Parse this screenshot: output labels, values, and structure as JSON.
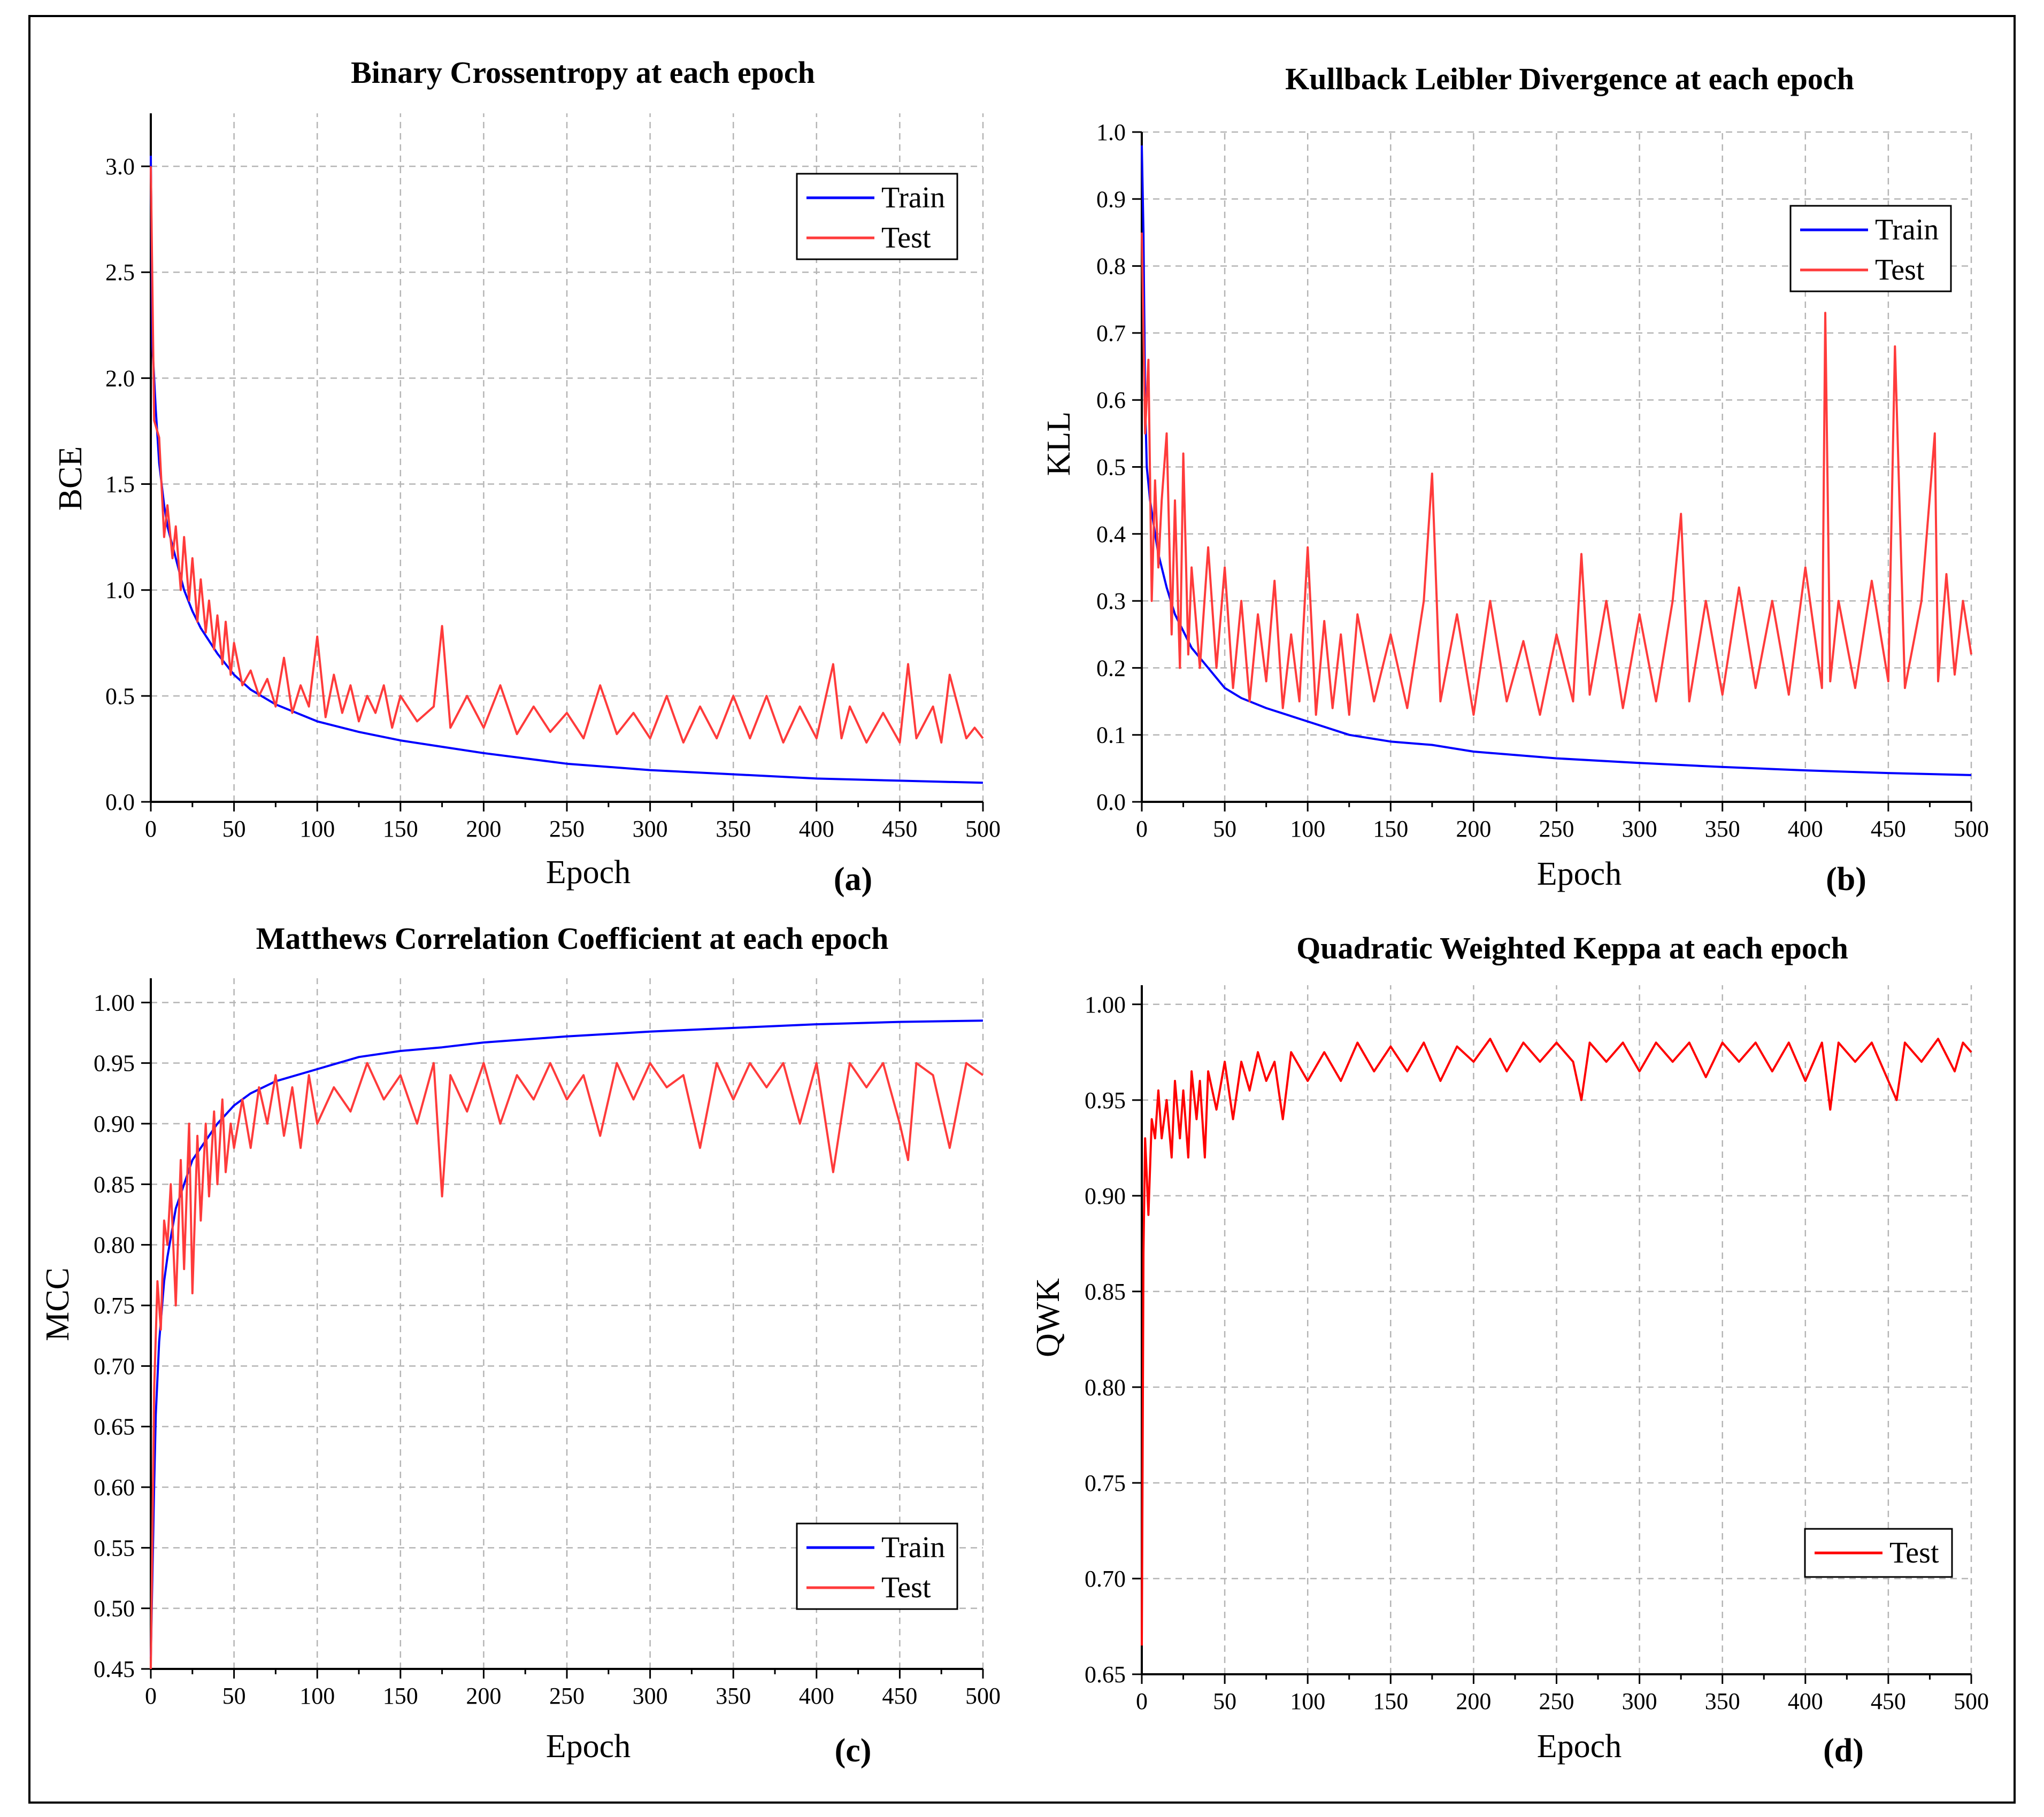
{
  "chart_data": [
    {
      "type": "line",
      "panel_label": "(a)",
      "title": "Binary Crossentropy at each epoch",
      "xlabel": "Epoch",
      "ylabel": "BCE",
      "xlim": [
        0,
        500
      ],
      "ylim": [
        0,
        3.25
      ],
      "xticks": [
        "0",
        "50",
        "100",
        "150",
        "200",
        "250",
        "300",
        "350",
        "400",
        "450",
        "500"
      ],
      "yticks": [
        "0.0",
        "0.5",
        "1.0",
        "1.5",
        "2.0",
        "2.5",
        "3.0"
      ],
      "ytick_values": [
        0,
        0.5,
        1.0,
        1.5,
        2.0,
        2.5,
        3.0
      ],
      "grid": true,
      "legend_position": "top-right",
      "series": [
        {
          "name": "Train",
          "color": "#0000ff",
          "x": [
            0,
            1,
            3,
            5,
            8,
            10,
            15,
            20,
            25,
            30,
            40,
            50,
            60,
            75,
            100,
            125,
            150,
            175,
            200,
            250,
            300,
            350,
            400,
            450,
            500
          ],
          "y": [
            3.05,
            2.15,
            1.85,
            1.6,
            1.4,
            1.3,
            1.15,
            1.0,
            0.9,
            0.82,
            0.7,
            0.6,
            0.53,
            0.46,
            0.38,
            0.33,
            0.29,
            0.26,
            0.23,
            0.18,
            0.15,
            0.13,
            0.11,
            0.1,
            0.09
          ]
        },
        {
          "name": "Test",
          "color": "#ff3b3b",
          "x": [
            0,
            2,
            5,
            8,
            10,
            13,
            15,
            18,
            20,
            23,
            25,
            28,
            30,
            33,
            35,
            38,
            40,
            43,
            45,
            48,
            50,
            55,
            60,
            65,
            70,
            75,
            80,
            85,
            90,
            95,
            100,
            105,
            110,
            115,
            120,
            125,
            130,
            135,
            140,
            145,
            150,
            160,
            170,
            175,
            180,
            190,
            200,
            210,
            220,
            230,
            240,
            250,
            260,
            270,
            280,
            290,
            300,
            310,
            320,
            330,
            340,
            350,
            360,
            370,
            380,
            390,
            400,
            410,
            415,
            420,
            430,
            440,
            450,
            455,
            460,
            470,
            475,
            480,
            490,
            495,
            500
          ],
          "y": [
            3.0,
            1.8,
            1.72,
            1.25,
            1.4,
            1.15,
            1.3,
            1.0,
            1.25,
            0.95,
            1.15,
            0.85,
            1.05,
            0.8,
            0.95,
            0.72,
            0.88,
            0.65,
            0.85,
            0.6,
            0.75,
            0.55,
            0.62,
            0.5,
            0.58,
            0.45,
            0.68,
            0.42,
            0.55,
            0.45,
            0.78,
            0.4,
            0.6,
            0.42,
            0.55,
            0.38,
            0.5,
            0.42,
            0.55,
            0.35,
            0.5,
            0.38,
            0.45,
            0.83,
            0.35,
            0.5,
            0.35,
            0.55,
            0.32,
            0.45,
            0.33,
            0.42,
            0.3,
            0.55,
            0.32,
            0.42,
            0.3,
            0.5,
            0.28,
            0.45,
            0.3,
            0.5,
            0.3,
            0.5,
            0.28,
            0.45,
            0.3,
            0.65,
            0.3,
            0.45,
            0.28,
            0.42,
            0.28,
            0.65,
            0.3,
            0.45,
            0.28,
            0.6,
            0.3,
            0.35,
            0.3
          ]
        }
      ]
    },
    {
      "type": "line",
      "panel_label": "(b)",
      "title": "Kullback Leibler Divergence at each epoch",
      "xlabel": "Epoch",
      "ylabel": "KLL",
      "xlim": [
        0,
        500
      ],
      "ylim": [
        0,
        1.0
      ],
      "xticks": [
        "0",
        "50",
        "100",
        "150",
        "200",
        "250",
        "300",
        "350",
        "400",
        "450",
        "500"
      ],
      "yticks": [
        "0.0",
        "0.1",
        "0.2",
        "0.3",
        "0.4",
        "0.5",
        "0.6",
        "0.7",
        "0.8",
        "0.9",
        "1.0"
      ],
      "ytick_values": [
        0,
        0.1,
        0.2,
        0.3,
        0.4,
        0.5,
        0.6,
        0.7,
        0.8,
        0.9,
        1.0
      ],
      "grid": true,
      "legend_position": "top-right",
      "series": [
        {
          "name": "Train",
          "color": "#0000ff",
          "x": [
            0,
            1,
            2,
            3,
            5,
            8,
            10,
            15,
            20,
            30,
            40,
            50,
            60,
            75,
            100,
            125,
            150,
            175,
            200,
            250,
            300,
            350,
            400,
            450,
            500
          ],
          "y": [
            0.98,
            0.85,
            0.6,
            0.5,
            0.45,
            0.4,
            0.37,
            0.32,
            0.28,
            0.23,
            0.2,
            0.17,
            0.155,
            0.14,
            0.12,
            0.1,
            0.09,
            0.085,
            0.075,
            0.065,
            0.058,
            0.052,
            0.047,
            0.043,
            0.04
          ]
        },
        {
          "name": "Test",
          "color": "#ff3b3b",
          "x": [
            0,
            2,
            4,
            6,
            8,
            10,
            12,
            15,
            18,
            20,
            23,
            25,
            28,
            30,
            35,
            40,
            45,
            50,
            55,
            60,
            65,
            70,
            75,
            80,
            85,
            90,
            95,
            100,
            105,
            110,
            115,
            120,
            125,
            130,
            140,
            150,
            160,
            170,
            175,
            180,
            190,
            200,
            210,
            220,
            230,
            240,
            250,
            260,
            265,
            270,
            280,
            290,
            300,
            310,
            320,
            325,
            330,
            340,
            350,
            360,
            370,
            380,
            390,
            400,
            410,
            412,
            415,
            420,
            430,
            440,
            450,
            454,
            460,
            470,
            478,
            480,
            485,
            490,
            495,
            500
          ],
          "y": [
            0.85,
            0.55,
            0.66,
            0.3,
            0.48,
            0.35,
            0.45,
            0.55,
            0.25,
            0.45,
            0.2,
            0.52,
            0.22,
            0.35,
            0.2,
            0.38,
            0.2,
            0.35,
            0.17,
            0.3,
            0.15,
            0.28,
            0.18,
            0.33,
            0.14,
            0.25,
            0.15,
            0.38,
            0.13,
            0.27,
            0.14,
            0.25,
            0.13,
            0.28,
            0.15,
            0.25,
            0.14,
            0.3,
            0.49,
            0.15,
            0.28,
            0.13,
            0.3,
            0.15,
            0.24,
            0.13,
            0.25,
            0.15,
            0.37,
            0.16,
            0.3,
            0.14,
            0.28,
            0.15,
            0.3,
            0.43,
            0.15,
            0.3,
            0.16,
            0.32,
            0.17,
            0.3,
            0.16,
            0.35,
            0.17,
            0.73,
            0.18,
            0.3,
            0.17,
            0.33,
            0.18,
            0.68,
            0.17,
            0.3,
            0.55,
            0.18,
            0.34,
            0.19,
            0.3,
            0.22
          ]
        }
      ]
    },
    {
      "type": "line",
      "panel_label": "(c)",
      "title": "Matthews Correlation Coefficient at each epoch",
      "xlabel": "Epoch",
      "ylabel": "MCC",
      "xlim": [
        0,
        500
      ],
      "ylim": [
        0.45,
        1.02
      ],
      "xticks": [
        "0",
        "50",
        "100",
        "150",
        "200",
        "250",
        "300",
        "350",
        "400",
        "450",
        "500"
      ],
      "yticks": [
        "0.45",
        "0.50",
        "0.55",
        "0.60",
        "0.65",
        "0.70",
        "0.75",
        "0.80",
        "0.85",
        "0.90",
        "0.95",
        "1.00"
      ],
      "ytick_values": [
        0.45,
        0.5,
        0.55,
        0.6,
        0.65,
        0.7,
        0.75,
        0.8,
        0.85,
        0.9,
        0.95,
        1.0
      ],
      "grid": true,
      "legend_position": "bottom-right",
      "series": [
        {
          "name": "Train",
          "color": "#0000ff",
          "x": [
            0,
            1,
            2,
            3,
            5,
            8,
            10,
            15,
            20,
            25,
            30,
            40,
            50,
            60,
            75,
            100,
            125,
            150,
            175,
            200,
            250,
            300,
            350,
            400,
            450,
            500
          ],
          "y": [
            0.46,
            0.53,
            0.6,
            0.66,
            0.72,
            0.77,
            0.79,
            0.83,
            0.85,
            0.87,
            0.88,
            0.9,
            0.915,
            0.925,
            0.935,
            0.945,
            0.955,
            0.96,
            0.963,
            0.967,
            0.972,
            0.976,
            0.979,
            0.982,
            0.984,
            0.985
          ]
        },
        {
          "name": "Test",
          "color": "#ff3b3b",
          "x": [
            0,
            2,
            4,
            6,
            8,
            10,
            12,
            15,
            18,
            20,
            23,
            25,
            28,
            30,
            33,
            35,
            38,
            40,
            43,
            45,
            48,
            50,
            55,
            60,
            65,
            70,
            75,
            80,
            85,
            90,
            95,
            100,
            110,
            120,
            130,
            140,
            150,
            160,
            170,
            175,
            180,
            190,
            200,
            210,
            220,
            230,
            240,
            250,
            260,
            270,
            280,
            290,
            300,
            310,
            320,
            330,
            340,
            350,
            360,
            370,
            380,
            390,
            400,
            410,
            420,
            430,
            440,
            450,
            455,
            460,
            470,
            480,
            490,
            500
          ],
          "y": [
            0.45,
            0.68,
            0.77,
            0.73,
            0.82,
            0.8,
            0.85,
            0.75,
            0.87,
            0.78,
            0.9,
            0.76,
            0.89,
            0.82,
            0.9,
            0.84,
            0.91,
            0.85,
            0.92,
            0.86,
            0.9,
            0.88,
            0.92,
            0.88,
            0.93,
            0.9,
            0.94,
            0.89,
            0.93,
            0.88,
            0.94,
            0.9,
            0.93,
            0.91,
            0.95,
            0.92,
            0.94,
            0.9,
            0.95,
            0.84,
            0.94,
            0.91,
            0.95,
            0.9,
            0.94,
            0.92,
            0.95,
            0.92,
            0.94,
            0.89,
            0.95,
            0.92,
            0.95,
            0.93,
            0.94,
            0.88,
            0.95,
            0.92,
            0.95,
            0.93,
            0.95,
            0.9,
            0.95,
            0.86,
            0.95,
            0.93,
            0.95,
            0.9,
            0.87,
            0.95,
            0.94,
            0.88,
            0.95,
            0.94
          ]
        }
      ]
    },
    {
      "type": "line",
      "panel_label": "(d)",
      "title": "Quadratic Weighted Keppa at each epoch",
      "xlabel": "Epoch",
      "ylabel": "QWK",
      "xlim": [
        0,
        500
      ],
      "ylim": [
        0.65,
        1.01
      ],
      "xticks": [
        "0",
        "50",
        "100",
        "150",
        "200",
        "250",
        "300",
        "350",
        "400",
        "450",
        "500"
      ],
      "yticks": [
        "0.65",
        "0.70",
        "0.75",
        "0.80",
        "0.85",
        "0.90",
        "0.95",
        "1.00"
      ],
      "ytick_values": [
        0.65,
        0.7,
        0.75,
        0.8,
        0.85,
        0.9,
        0.95,
        1.0
      ],
      "grid": true,
      "legend_position": "bottom-right",
      "series": [
        {
          "name": "Test",
          "color": "#ff0000",
          "x": [
            0,
            1,
            2,
            4,
            6,
            8,
            10,
            12,
            15,
            18,
            20,
            23,
            25,
            28,
            30,
            33,
            35,
            38,
            40,
            45,
            50,
            55,
            60,
            65,
            70,
            75,
            80,
            85,
            90,
            100,
            110,
            120,
            130,
            140,
            150,
            160,
            170,
            180,
            190,
            200,
            210,
            220,
            230,
            240,
            250,
            260,
            265,
            270,
            280,
            290,
            300,
            310,
            320,
            330,
            340,
            350,
            360,
            370,
            380,
            390,
            400,
            410,
            415,
            420,
            430,
            440,
            450,
            455,
            460,
            470,
            480,
            490,
            495,
            500
          ],
          "y": [
            0.665,
            0.87,
            0.93,
            0.89,
            0.94,
            0.93,
            0.955,
            0.93,
            0.95,
            0.92,
            0.96,
            0.93,
            0.955,
            0.92,
            0.965,
            0.94,
            0.96,
            0.92,
            0.965,
            0.945,
            0.97,
            0.94,
            0.97,
            0.955,
            0.975,
            0.96,
            0.97,
            0.94,
            0.975,
            0.96,
            0.975,
            0.96,
            0.98,
            0.965,
            0.978,
            0.965,
            0.98,
            0.96,
            0.978,
            0.97,
            0.982,
            0.965,
            0.98,
            0.97,
            0.98,
            0.97,
            0.95,
            0.98,
            0.97,
            0.98,
            0.965,
            0.98,
            0.97,
            0.98,
            0.962,
            0.98,
            0.97,
            0.98,
            0.965,
            0.98,
            0.96,
            0.98,
            0.945,
            0.98,
            0.97,
            0.98,
            0.96,
            0.95,
            0.98,
            0.97,
            0.982,
            0.965,
            0.98,
            0.975
          ]
        }
      ]
    }
  ]
}
